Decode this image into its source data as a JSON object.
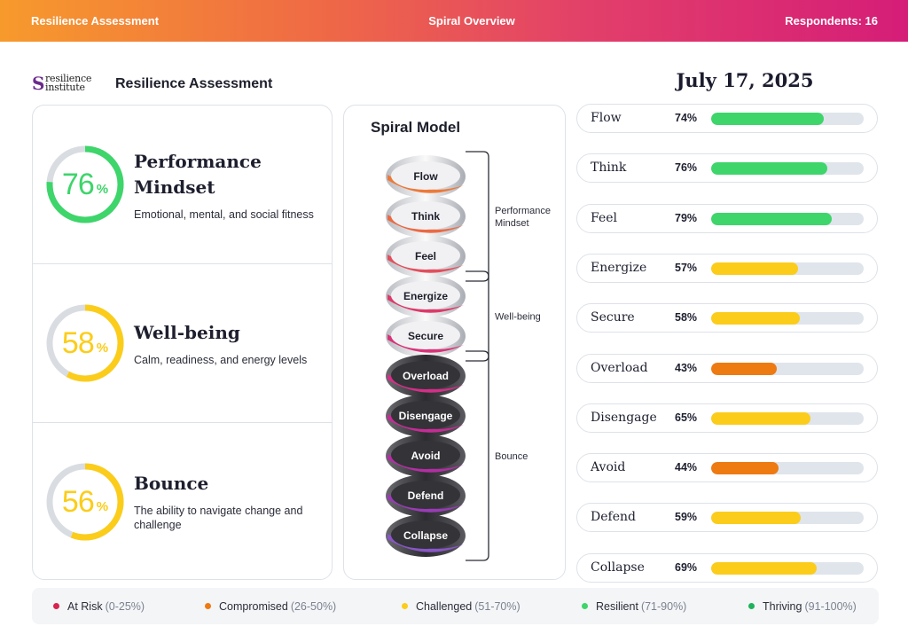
{
  "header": {
    "left": "Resilience Assessment",
    "center": "Spiral Overview",
    "right": "Respondents: 16"
  },
  "brand": {
    "line1": "resilience",
    "line2": "institute",
    "mark": "S"
  },
  "page_title": "Resilience Assessment",
  "date": "July 17, 2025",
  "sections": [
    {
      "title": "Performance Mindset",
      "title_lines": [
        "Performance",
        "Mindset"
      ],
      "value": "76",
      "pct": "%",
      "fraction": 0.76,
      "desc_lines": [
        "Emotional, mental, and social fitness"
      ],
      "color": "#3ed56b"
    },
    {
      "title": "Well-being",
      "title_lines": [
        "Well-being"
      ],
      "value": "58",
      "pct": "%",
      "fraction": 0.58,
      "desc_lines": [
        "Calm, readiness, and energy levels"
      ],
      "color": "#fbcd1a"
    },
    {
      "title": "Bounce",
      "title_lines": [
        "Bounce"
      ],
      "value": "56",
      "pct": "%",
      "fraction": 0.56,
      "desc_lines": [
        "The ability to navigate change and",
        "challenge"
      ],
      "color": "#fbcd1a"
    }
  ],
  "spiral": {
    "title": "Spiral Model",
    "levels": [
      {
        "label": "Flow",
        "dark": false,
        "ribbon": "#ec7a3a"
      },
      {
        "label": "Think",
        "dark": false,
        "ribbon": "#ea6a44"
      },
      {
        "label": "Feel",
        "dark": false,
        "ribbon": "#e24f5e"
      },
      {
        "label": "Energize",
        "dark": false,
        "ribbon": "#dc3a6a"
      },
      {
        "label": "Secure",
        "dark": false,
        "ribbon": "#d83378"
      },
      {
        "label": "Overload",
        "dark": true,
        "ribbon": "#d42f88"
      },
      {
        "label": "Disengage",
        "dark": true,
        "ribbon": "#c62c95"
      },
      {
        "label": "Avoid",
        "dark": true,
        "ribbon": "#b32ea3"
      },
      {
        "label": "Defend",
        "dark": true,
        "ribbon": "#9a3bb6"
      },
      {
        "label": "Collapse",
        "dark": true,
        "ribbon": "#8a56c7"
      }
    ],
    "groups": [
      {
        "lines": [
          "Performance",
          "Mindset"
        ],
        "from": 0,
        "to": 2
      },
      {
        "lines": [
          "Well-being"
        ],
        "from": 3,
        "to": 4
      },
      {
        "lines": [
          "Bounce"
        ],
        "from": 5,
        "to": 9
      }
    ]
  },
  "scores": [
    {
      "name": "Flow",
      "value": "74%",
      "fraction": 0.74,
      "color": "#3ed56b"
    },
    {
      "name": "Think",
      "value": "76%",
      "fraction": 0.76,
      "color": "#3ed56b"
    },
    {
      "name": "Feel",
      "value": "79%",
      "fraction": 0.79,
      "color": "#3ed56b"
    },
    {
      "name": "Energize",
      "value": "57%",
      "fraction": 0.57,
      "color": "#fbcd1a"
    },
    {
      "name": "Secure",
      "value": "58%",
      "fraction": 0.58,
      "color": "#fbcd1a"
    },
    {
      "name": "Overload",
      "value": "43%",
      "fraction": 0.43,
      "color": "#ee7a12"
    },
    {
      "name": "Disengage",
      "value": "65%",
      "fraction": 0.65,
      "color": "#fbcd1a"
    },
    {
      "name": "Avoid",
      "value": "44%",
      "fraction": 0.44,
      "color": "#ee7a12"
    },
    {
      "name": "Defend",
      "value": "59%",
      "fraction": 0.59,
      "color": "#fbcd1a"
    },
    {
      "name": "Collapse",
      "value": "69%",
      "fraction": 0.69,
      "color": "#fbcd1a"
    }
  ],
  "legend": [
    {
      "label": "At Risk",
      "range": "(0-25%)",
      "color": "#d8234f"
    },
    {
      "label": "Compromised",
      "range": "(26-50%)",
      "color": "#ee7a12"
    },
    {
      "label": "Challenged",
      "range": "(51-70%)",
      "color": "#fbcd1a"
    },
    {
      "label": "Resilient",
      "range": "(71-90%)",
      "color": "#3ed56b"
    },
    {
      "label": "Thriving",
      "range": "(91-100%)",
      "color": "#1fb25a"
    }
  ]
}
